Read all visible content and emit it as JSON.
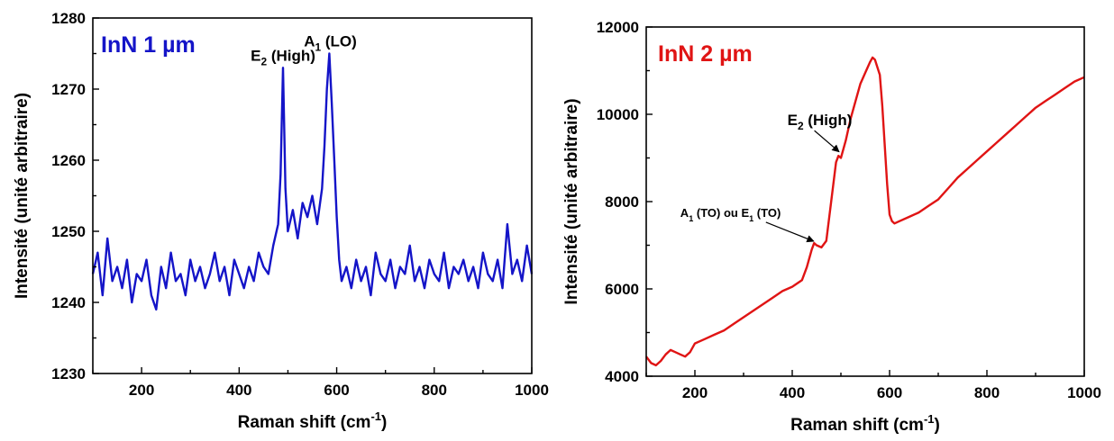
{
  "chart_data": [
    {
      "type": "line",
      "panel_label": "InN 1 µm",
      "xlabel": "Raman shift (cm",
      "xlabel_sup": "-1",
      "xlabel_end": ")",
      "ylabel": "Intensité (unité arbitraire)",
      "xlim": [
        100,
        1000
      ],
      "ylim": [
        1230,
        1280
      ],
      "xticks": [
        200,
        400,
        600,
        800,
        1000
      ],
      "yticks": [
        1230,
        1240,
        1250,
        1260,
        1270,
        1280
      ],
      "color": "#1414c8",
      "grid": false,
      "annotations": [
        {
          "text": "E",
          "sub": "2",
          "rest": " (High)",
          "x": 490,
          "y": 1273
        },
        {
          "text": "A",
          "sub": "1",
          "rest": " (LO)",
          "x": 587,
          "y": 1275
        }
      ],
      "series": [
        {
          "x": [
            100,
            110,
            120,
            130,
            140,
            150,
            160,
            170,
            180,
            190,
            200,
            210,
            220,
            230,
            240,
            250,
            260,
            270,
            280,
            290,
            300,
            310,
            320,
            330,
            340,
            350,
            360,
            370,
            380,
            390,
            400,
            410,
            420,
            430,
            440,
            450,
            460,
            470,
            480,
            485,
            490,
            495,
            500,
            510,
            520,
            530,
            540,
            550,
            560,
            570,
            575,
            580,
            585,
            590,
            595,
            600,
            605,
            610,
            620,
            630,
            640,
            650,
            660,
            670,
            680,
            690,
            700,
            710,
            720,
            730,
            740,
            750,
            760,
            770,
            780,
            790,
            800,
            810,
            820,
            830,
            840,
            850,
            860,
            870,
            880,
            890,
            900,
            910,
            920,
            930,
            940,
            950,
            960,
            970,
            980,
            990,
            1000
          ],
          "y": [
            1244,
            1247,
            1241,
            1249,
            1243,
            1245,
            1242,
            1246,
            1240,
            1244,
            1243,
            1246,
            1241,
            1239,
            1245,
            1242,
            1247,
            1243,
            1244,
            1241,
            1246,
            1243,
            1245,
            1242,
            1244,
            1247,
            1243,
            1245,
            1241,
            1246,
            1244,
            1242,
            1245,
            1243,
            1247,
            1245,
            1244,
            1248,
            1251,
            1258,
            1273,
            1256,
            1250,
            1253,
            1249,
            1254,
            1252,
            1255,
            1251,
            1256,
            1262,
            1270,
            1275,
            1268,
            1260,
            1252,
            1246,
            1243,
            1245,
            1242,
            1246,
            1243,
            1245,
            1241,
            1247,
            1244,
            1243,
            1246,
            1242,
            1245,
            1244,
            1248,
            1243,
            1245,
            1242,
            1246,
            1244,
            1243,
            1247,
            1242,
            1245,
            1244,
            1246,
            1243,
            1245,
            1242,
            1247,
            1244,
            1243,
            1246,
            1242,
            1251,
            1244,
            1246,
            1243,
            1248,
            1244
          ]
        }
      ]
    },
    {
      "type": "line",
      "panel_label": "InN 2 µm",
      "xlabel": "Raman shift (cm",
      "xlabel_sup": "-1",
      "xlabel_end": ")",
      "ylabel": "Intensité (unité arbitraire)",
      "xlim": [
        100,
        1000
      ],
      "ylim": [
        4000,
        12000
      ],
      "xticks": [
        200,
        400,
        600,
        800,
        1000
      ],
      "yticks": [
        4000,
        6000,
        8000,
        10000,
        12000
      ],
      "color": "#e01414",
      "grid": false,
      "annotations": [
        {
          "text": "E",
          "sub": "2",
          "rest": " (High)",
          "x": 500,
          "y": 9100,
          "label_x": 390,
          "label_y": 9750
        },
        {
          "text": "A",
          "sub": "1",
          "rest": " (TO) ou E",
          "sub2": "1",
          "rest2": " (TO)",
          "x": 448,
          "y": 7050,
          "label_x": 170,
          "label_y": 7650
        }
      ],
      "series": [
        {
          "x": [
            100,
            110,
            120,
            130,
            140,
            150,
            160,
            170,
            180,
            190,
            200,
            220,
            240,
            260,
            280,
            300,
            320,
            340,
            360,
            380,
            400,
            420,
            430,
            440,
            445,
            450,
            460,
            470,
            480,
            490,
            495,
            500,
            510,
            520,
            530,
            540,
            550,
            560,
            565,
            570,
            580,
            585,
            590,
            595,
            600,
            605,
            610,
            620,
            640,
            660,
            680,
            700,
            720,
            740,
            760,
            780,
            800,
            820,
            840,
            860,
            880,
            900,
            920,
            940,
            960,
            980,
            1000
          ],
          "y": [
            4450,
            4300,
            4250,
            4350,
            4500,
            4600,
            4550,
            4500,
            4450,
            4550,
            4750,
            4850,
            4950,
            5050,
            5200,
            5350,
            5500,
            5650,
            5800,
            5950,
            6050,
            6200,
            6500,
            6900,
            7050,
            7000,
            6950,
            7100,
            8000,
            8900,
            9050,
            9000,
            9400,
            9900,
            10300,
            10700,
            10950,
            11200,
            11300,
            11250,
            10900,
            10200,
            9300,
            8400,
            7700,
            7550,
            7500,
            7550,
            7650,
            7750,
            7900,
            8050,
            8300,
            8550,
            8750,
            8950,
            9150,
            9350,
            9550,
            9750,
            9950,
            10150,
            10300,
            10450,
            10600,
            10750,
            10850
          ]
        }
      ]
    }
  ]
}
